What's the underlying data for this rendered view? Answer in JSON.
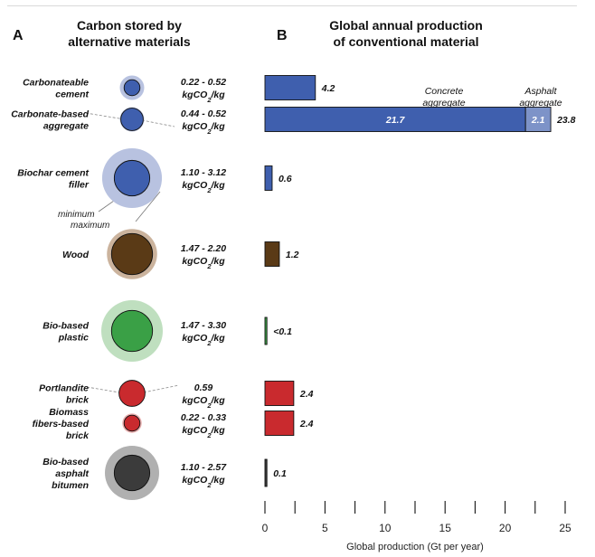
{
  "panel_a": {
    "label": "A",
    "title_line1": "Carbon stored by",
    "title_line2": "alternative materials",
    "legend_min": "minimum",
    "legend_max": "maximum",
    "unit": "kgCO",
    "unit_sub": "2",
    "unit_tail": "/kg"
  },
  "panel_b": {
    "label": "B",
    "title_line1": "Global annual production",
    "title_line2": "of conventional material",
    "annotation_concrete_1": "Concrete",
    "annotation_concrete_2": "aggregate",
    "annotation_asphalt_1": "Asphalt",
    "annotation_asphalt_2": "aggregate"
  },
  "chart_data": [
    {
      "type": "bubble",
      "title": "Carbon stored by alternative materials",
      "unit": "kgCO2/kg",
      "rows": [
        {
          "name_lines": [
            "Carbonateable",
            "cement"
          ],
          "range_text": "0.22 - 0.52",
          "min": 0.22,
          "max": 0.52,
          "color": "#3f5fae",
          "halo": "#b8c2e0"
        },
        {
          "name_lines": [
            "Carbonate-based",
            "aggregate"
          ],
          "range_text": "0.44 - 0.52",
          "min": 0.44,
          "max": 0.52,
          "color": "#3f5fae",
          "halo": "#b8c2e0"
        },
        {
          "name_lines": [
            "Biochar cement",
            "filler"
          ],
          "range_text": "1.10 - 3.12",
          "min": 1.1,
          "max": 3.12,
          "color": "#3f5fae",
          "halo": "#b8c2e0"
        },
        {
          "name_lines": [
            "Wood"
          ],
          "range_text": "1.47 - 2.20",
          "min": 1.47,
          "max": 2.2,
          "color": "#5a3a16",
          "halo": "#cbb39d"
        },
        {
          "name_lines": [
            "Bio-based",
            "plastic"
          ],
          "range_text": "1.47 - 3.30",
          "min": 1.47,
          "max": 3.3,
          "color": "#3aa046",
          "halo": "#bfdfbf"
        },
        {
          "name_lines": [
            "Portlandite",
            "brick"
          ],
          "range_text": "0.59",
          "min": 0.59,
          "max": 0.59,
          "color": "#c92a2e",
          "halo": "#eab0b0"
        },
        {
          "name_lines": [
            "Biomass",
            "fibers-based",
            "brick"
          ],
          "range_text": "0.22 - 0.33",
          "min": 0.22,
          "max": 0.33,
          "color": "#c92a2e",
          "halo": "#eab0b0"
        },
        {
          "name_lines": [
            "Bio-based",
            "asphalt",
            "bitumen"
          ],
          "range_text": "1.10 - 2.57",
          "min": 1.1,
          "max": 2.57,
          "color": "#3b3b3b",
          "halo": "#b0b0b0"
        }
      ]
    },
    {
      "type": "bar",
      "title": "Global annual production of conventional material",
      "xlabel": "Global production (Gt per year)",
      "xlim": [
        0,
        25
      ],
      "xticks": [
        0,
        5,
        10,
        15,
        20,
        25
      ],
      "bars": [
        {
          "segments": [
            {
              "value": 4.2,
              "color": "#3f5fae"
            }
          ],
          "label": "4.2"
        },
        {
          "segments": [
            {
              "value": 21.7,
              "color": "#3f5fae",
              "inner_label": "21.7"
            },
            {
              "value": 2.1,
              "color": "#7d93c8",
              "inner_label": "2.1"
            }
          ],
          "label": "23.8"
        },
        {
          "segments": [
            {
              "value": 0.6,
              "color": "#3f5fae"
            }
          ],
          "label": "0.6"
        },
        {
          "segments": [
            {
              "value": 1.2,
              "color": "#5a3a16"
            }
          ],
          "label": "1.2"
        },
        {
          "segments": [
            {
              "value": 0.1,
              "color": "#3aa046"
            }
          ],
          "label": "<0.1"
        },
        {
          "segments": [
            {
              "value": 2.4,
              "color": "#c92a2e"
            }
          ],
          "label": "2.4"
        },
        {
          "segments": [
            {
              "value": 2.4,
              "color": "#c92a2e"
            }
          ],
          "label": "2.4"
        },
        {
          "segments": [
            {
              "value": 0.1,
              "color": "#3b3b3b"
            }
          ],
          "label": "0.1"
        }
      ]
    }
  ]
}
